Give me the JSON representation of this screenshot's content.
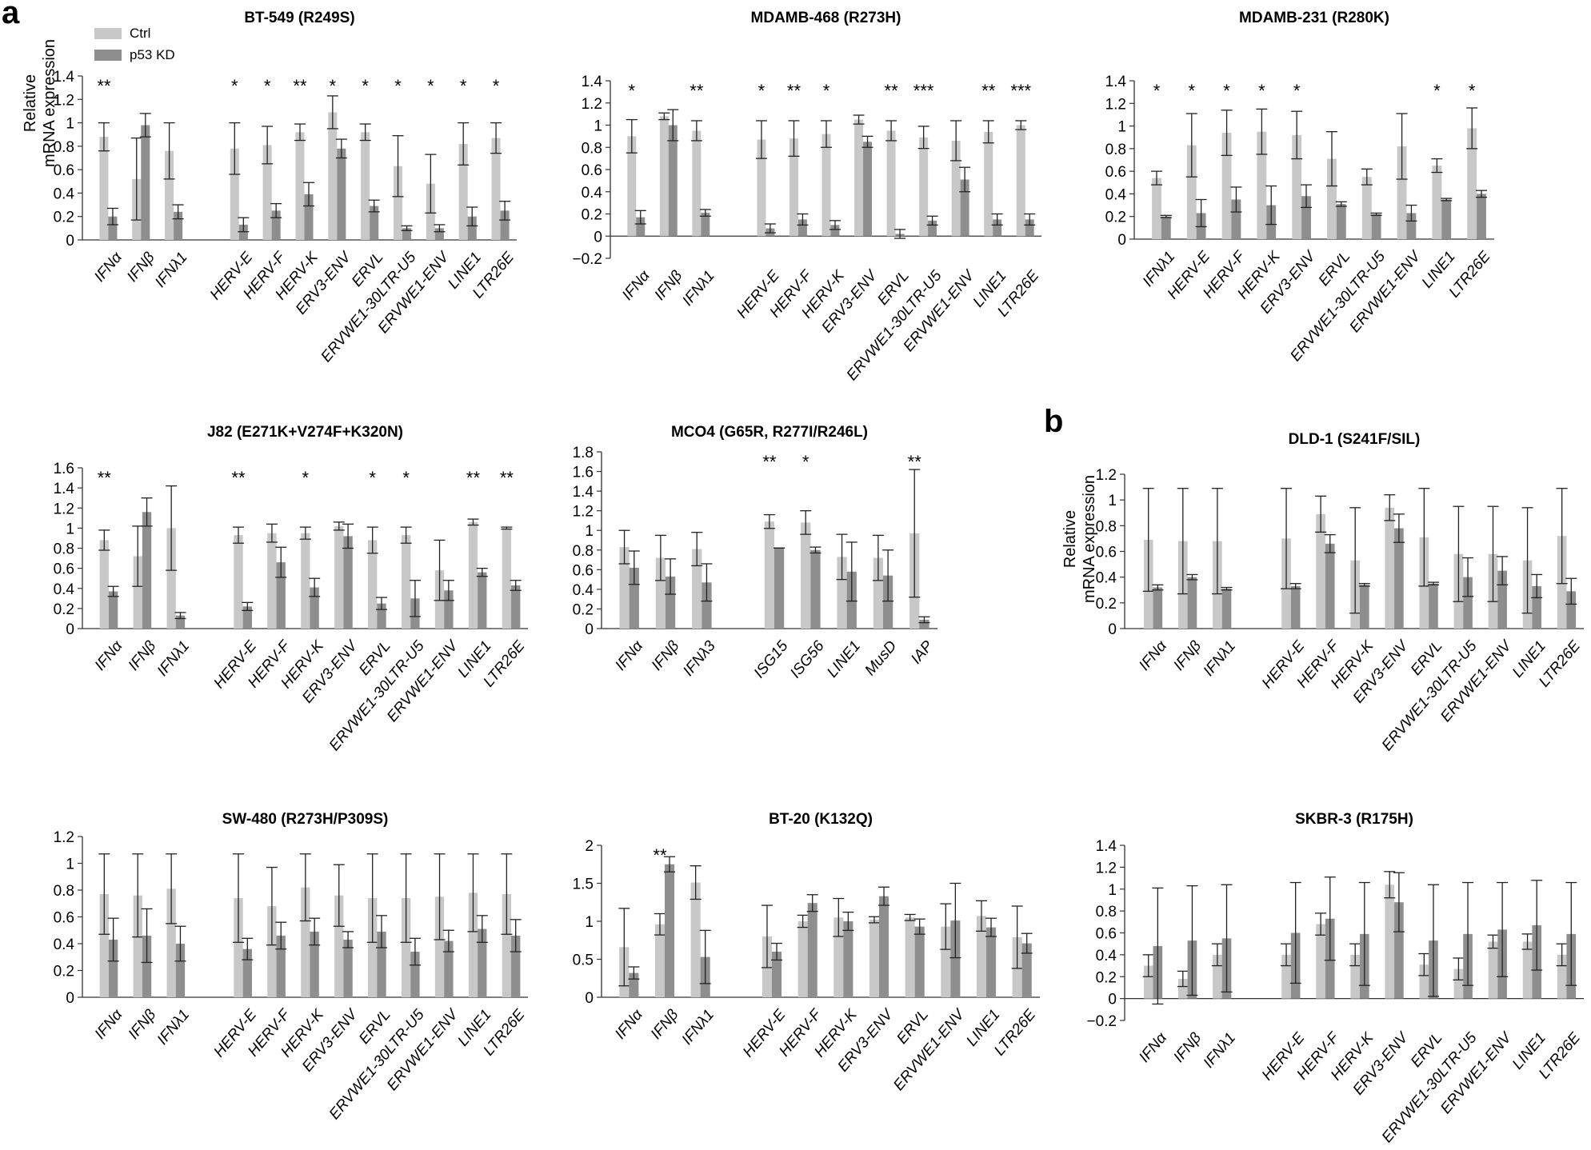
{
  "figure": {
    "panel_a_label": "a",
    "panel_b_label": "b",
    "ylabel_line1": "Relative",
    "ylabel_line2": "mRNA expression",
    "legend": [
      {
        "label": "Ctrl",
        "color": "#c8c8c8"
      },
      {
        "label": "p53 KD",
        "color": "#8e8e8e"
      }
    ],
    "ctrl_color": "#c8c8c8",
    "kd_color": "#8e8e8e"
  },
  "chart_data": [
    {
      "type": "bar",
      "title": "BT-549 (R249S)",
      "ylim": [
        0,
        1.4
      ],
      "ystep": 0.2,
      "yticks": [
        "0",
        "0.2",
        "0.4",
        "0.6",
        "0.8",
        "1",
        "1.2",
        "1.4"
      ],
      "categories": [
        "IFNα",
        "IFNβ",
        "IFNλ1",
        "HERV-E",
        "HERV-F",
        "HERV-K",
        "ERV3-ENV",
        "ERVL",
        "ERVWE1-30LTR-U5",
        "ERVWE1-ENV",
        "LINE1",
        "LTR26E"
      ],
      "gap_after": 2,
      "series": [
        {
          "name": "Ctrl",
          "values": [
            0.88,
            0.52,
            0.76,
            0.78,
            0.81,
            0.92,
            1.09,
            0.92,
            0.63,
            0.48,
            0.82,
            0.87
          ],
          "errors": [
            0.12,
            0.35,
            0.24,
            0.22,
            0.16,
            0.07,
            0.14,
            0.07,
            0.26,
            0.25,
            0.18,
            0.13
          ]
        },
        {
          "name": "p53 KD",
          "values": [
            0.2,
            0.98,
            0.24,
            0.13,
            0.25,
            0.39,
            0.78,
            0.29,
            0.1,
            0.1,
            0.2,
            0.25
          ],
          "errors": [
            0.07,
            0.1,
            0.06,
            0.06,
            0.06,
            0.1,
            0.08,
            0.05,
            0.02,
            0.03,
            0.08,
            0.08
          ]
        }
      ],
      "sig": [
        "**",
        "",
        "",
        "*",
        "*",
        "**",
        "*",
        "*",
        "*",
        "*",
        "*",
        "*"
      ]
    },
    {
      "type": "bar",
      "title": "MDAMB-468 (R273H)",
      "ylim": [
        -0.2,
        1.4
      ],
      "ystep": 0.2,
      "yticks": [
        "−0.2",
        "0",
        "0.2",
        "0.4",
        "0.6",
        "0.8",
        "1",
        "1.2",
        "1.4"
      ],
      "categories": [
        "IFNα",
        "IFNβ",
        "IFNλ1",
        "HERV-E",
        "HERV-F",
        "HERV-K",
        "ERV3-ENV",
        "ERVL",
        "ERVWE1-30LTR-U5",
        "ERVWE1-ENV",
        "LINE1",
        "LTR26E"
      ],
      "gap_after": 2,
      "series": [
        {
          "name": "Ctrl",
          "values": [
            0.9,
            1.08,
            0.95,
            0.87,
            0.88,
            0.92,
            1.05,
            0.95,
            0.89,
            0.86,
            0.94,
            1.0
          ],
          "errors": [
            0.15,
            0.03,
            0.09,
            0.17,
            0.16,
            0.12,
            0.04,
            0.09,
            0.1,
            0.18,
            0.1,
            0.04
          ]
        },
        {
          "name": "p53 KD",
          "values": [
            0.17,
            1.0,
            0.21,
            0.07,
            0.15,
            0.1,
            0.85,
            0.02,
            0.14,
            0.51,
            0.15,
            0.15
          ],
          "errors": [
            0.06,
            0.14,
            0.03,
            0.04,
            0.05,
            0.04,
            0.05,
            0.04,
            0.04,
            0.11,
            0.05,
            0.05
          ]
        }
      ],
      "sig": [
        "*",
        "",
        "**",
        "*",
        "**",
        "*",
        "",
        "**",
        "***",
        "",
        "**",
        "***"
      ]
    },
    {
      "type": "bar",
      "title": "MDAMB-231 (R280K)",
      "ylim": [
        0,
        1.4
      ],
      "ystep": 0.2,
      "yticks": [
        "0",
        "0.2",
        "0.4",
        "0.6",
        "0.8",
        "1",
        "1.2",
        "1.4"
      ],
      "categories": [
        "IFNλ1",
        "HERV-E",
        "HERV-F",
        "HERV-K",
        "ERV3-ENV",
        "ERVL",
        "ERVWE1-30LTR-U5",
        "ERVWE1-ENV",
        "LINE1",
        "LTR26E"
      ],
      "gap_after": 0,
      "series": [
        {
          "name": "Ctrl",
          "values": [
            0.54,
            0.83,
            0.94,
            0.95,
            0.92,
            0.71,
            0.55,
            0.82,
            0.65,
            0.98
          ],
          "errors": [
            0.06,
            0.28,
            0.2,
            0.2,
            0.21,
            0.24,
            0.07,
            0.29,
            0.06,
            0.18
          ]
        },
        {
          "name": "p53 KD",
          "values": [
            0.2,
            0.23,
            0.35,
            0.3,
            0.38,
            0.31,
            0.22,
            0.23,
            0.35,
            0.4
          ],
          "errors": [
            0.01,
            0.12,
            0.11,
            0.17,
            0.1,
            0.02,
            0.01,
            0.07,
            0.01,
            0.03
          ]
        }
      ],
      "sig": [
        "*",
        "*",
        "*",
        "*",
        "*",
        "",
        "",
        "",
        "*",
        "*"
      ]
    },
    {
      "type": "bar",
      "title": "J82 (E271K+V274F+K320N)",
      "ylim": [
        0,
        1.6
      ],
      "ystep": 0.2,
      "yticks": [
        "0",
        "0.2",
        "0.4",
        "0.6",
        "0.8",
        "1",
        "1.2",
        "1.4",
        "1.6"
      ],
      "categories": [
        "IFNα",
        "IFNβ",
        "IFNλ1",
        "HERV-E",
        "HERV-F",
        "HERV-K",
        "ERV3-ENV",
        "ERVL",
        "ERVWE1-30LTR-U5",
        "ERVWE1-ENV",
        "LINE1",
        "LTR26E"
      ],
      "gap_after": 2,
      "series": [
        {
          "name": "Ctrl",
          "values": [
            0.88,
            0.72,
            1.0,
            0.93,
            0.95,
            0.95,
            1.02,
            0.88,
            0.93,
            0.58,
            1.06,
            1.0
          ],
          "errors": [
            0.1,
            0.3,
            0.42,
            0.08,
            0.09,
            0.06,
            0.04,
            0.13,
            0.08,
            0.3,
            0.03,
            0.01
          ]
        },
        {
          "name": "p53 KD",
          "values": [
            0.37,
            1.16,
            0.13,
            0.22,
            0.66,
            0.41,
            0.92,
            0.25,
            0.3,
            0.38,
            0.56,
            0.43
          ],
          "errors": [
            0.05,
            0.14,
            0.03,
            0.04,
            0.15,
            0.09,
            0.12,
            0.06,
            0.18,
            0.1,
            0.04,
            0.05
          ]
        }
      ],
      "sig": [
        "**",
        "",
        "",
        "**",
        "",
        "*",
        "",
        "*",
        "*",
        "",
        "**",
        "**"
      ]
    },
    {
      "type": "bar",
      "title": "MCO4 (G65R, R277I/R246L)",
      "ylim": [
        0,
        1.8
      ],
      "ystep": 0.2,
      "yticks": [
        "0",
        "0.2",
        "0.4",
        "0.6",
        "0.8",
        "1",
        "1.2",
        "1.4",
        "1.6",
        "1.8"
      ],
      "categories": [
        "IFNα",
        "IFNβ",
        "IFNλ3",
        "ISG15",
        "ISG56",
        "LINE1",
        "MusD",
        "IAP"
      ],
      "gap_after": 2,
      "series": [
        {
          "name": "Ctrl",
          "values": [
            0.83,
            0.72,
            0.81,
            1.09,
            1.08,
            0.73,
            0.72,
            0.97
          ],
          "errors": [
            0.17,
            0.23,
            0.17,
            0.07,
            0.12,
            0.23,
            0.23,
            0.65
          ]
        },
        {
          "name": "p53 KD",
          "values": [
            0.62,
            0.53,
            0.47,
            0.82,
            0.8,
            0.58,
            0.54,
            0.09
          ],
          "errors": [
            0.17,
            0.18,
            0.19,
            0.0,
            0.03,
            0.3,
            0.26,
            0.03
          ]
        }
      ],
      "sig": [
        "",
        "",
        "",
        "**",
        "*",
        "",
        "",
        "**"
      ]
    },
    {
      "type": "bar",
      "title": "DLD-1 (S241F/SIL)",
      "ylim": [
        0,
        1.2
      ],
      "ystep": 0.2,
      "yticks": [
        "0",
        "0.2",
        "0.4",
        "0.6",
        "0.8",
        "1",
        "1.2"
      ],
      "categories": [
        "IFNα",
        "IFNβ",
        "IFNλ1",
        "HERV-E",
        "HERV-F",
        "HERV-K",
        "ERV3-ENV",
        "ERVL",
        "ERVWE1-30LTR-U5",
        "ERVWE1-ENV",
        "LINE1",
        "LTR26E"
      ],
      "gap_after": 2,
      "series": [
        {
          "name": "Ctrl",
          "values": [
            0.69,
            0.68,
            0.68,
            0.7,
            0.89,
            0.53,
            0.94,
            0.71,
            0.58,
            0.58,
            0.53,
            0.72
          ],
          "errors": [
            0.4,
            0.41,
            0.41,
            0.39,
            0.14,
            0.41,
            0.1,
            0.38,
            0.37,
            0.37,
            0.41,
            0.37
          ]
        },
        {
          "name": "p53 KD",
          "values": [
            0.32,
            0.4,
            0.31,
            0.33,
            0.66,
            0.34,
            0.78,
            0.35,
            0.4,
            0.45,
            0.33,
            0.29
          ],
          "errors": [
            0.02,
            0.02,
            0.01,
            0.02,
            0.07,
            0.01,
            0.11,
            0.01,
            0.15,
            0.11,
            0.09,
            0.1
          ]
        }
      ],
      "sig": [
        "",
        "",
        "",
        "",
        "",
        "",
        "",
        "",
        "",
        "",
        "",
        ""
      ]
    },
    {
      "type": "bar",
      "title": "SW-480 (R273H/P309S)",
      "ylim": [
        0,
        1.2
      ],
      "ystep": 0.2,
      "yticks": [
        "0",
        "0.2",
        "0.4",
        "0.6",
        "0.8",
        "1",
        "1.2"
      ],
      "categories": [
        "IFNα",
        "IFNβ",
        "IFNλ1",
        "HERV-E",
        "HERV-F",
        "HERV-K",
        "ERV3-ENV",
        "ERVL",
        "ERVWE1-30LTR-U5",
        "ERVWE1-ENV",
        "LINE1",
        "LTR26E"
      ],
      "gap_after": 2,
      "series": [
        {
          "name": "Ctrl",
          "values": [
            0.77,
            0.76,
            0.81,
            0.74,
            0.68,
            0.82,
            0.76,
            0.74,
            0.74,
            0.75,
            0.78,
            0.77
          ],
          "errors": [
            0.3,
            0.31,
            0.26,
            0.33,
            0.29,
            0.25,
            0.23,
            0.33,
            0.33,
            0.32,
            0.29,
            0.3
          ]
        },
        {
          "name": "p53 KD",
          "values": [
            0.43,
            0.46,
            0.4,
            0.36,
            0.46,
            0.49,
            0.43,
            0.49,
            0.34,
            0.42,
            0.51,
            0.46
          ],
          "errors": [
            0.16,
            0.2,
            0.13,
            0.08,
            0.1,
            0.1,
            0.06,
            0.12,
            0.1,
            0.08,
            0.1,
            0.12
          ]
        }
      ],
      "sig": [
        "",
        "",
        "",
        "",
        "",
        "",
        "",
        "",
        "",
        "",
        "",
        ""
      ]
    },
    {
      "type": "bar",
      "title": "BT-20 (K132Q)",
      "ylim": [
        0,
        2
      ],
      "ystep": 0.5,
      "yticks": [
        "0",
        "0.5",
        "1",
        "1.5",
        "2"
      ],
      "categories": [
        "IFNα",
        "IFNβ",
        "IFNλ1",
        "HERV-E",
        "HERV-F",
        "HERV-K",
        "ERV3-ENV",
        "ERVL",
        "ERVWE1-ENV",
        "LINE1",
        "LTR26E"
      ],
      "gap_after": 2,
      "series": [
        {
          "name": "Ctrl",
          "values": [
            0.66,
            0.96,
            1.51,
            0.8,
            1.0,
            1.05,
            1.02,
            1.05,
            0.93,
            1.07,
            0.79
          ],
          "errors": [
            0.51,
            0.14,
            0.22,
            0.41,
            0.08,
            0.25,
            0.04,
            0.04,
            0.3,
            0.2,
            0.41
          ]
        },
        {
          "name": "p53 KD",
          "values": [
            0.32,
            1.75,
            0.53,
            0.6,
            1.24,
            1.0,
            1.33,
            0.93,
            1.01,
            0.92,
            0.71
          ],
          "errors": [
            0.08,
            0.1,
            0.35,
            0.11,
            0.11,
            0.12,
            0.12,
            0.1,
            0.49,
            0.12,
            0.13
          ]
        }
      ],
      "sig": [
        "",
        "**",
        "",
        "",
        "",
        "",
        "",
        "",
        "",
        "",
        ""
      ]
    },
    {
      "type": "bar",
      "title": "SKBR-3 (R175H)",
      "ylim": [
        -0.2,
        1.4
      ],
      "ystep": 0.2,
      "yticks": [
        "−0.2",
        "0",
        "0.2",
        "0.4",
        "0.6",
        "0.8",
        "1",
        "1.2",
        "1.4"
      ],
      "categories": [
        "IFNα",
        "IFNβ",
        "IFNλ1",
        "HERV-E",
        "HERV-F",
        "HERV-K",
        "ERV3-ENV",
        "ERVL",
        "ERVWE1-30LTR-U5",
        "ERVWE1-ENV",
        "LINE1",
        "LTR26E"
      ],
      "gap_after": 2,
      "series": [
        {
          "name": "Ctrl",
          "values": [
            0.3,
            0.18,
            0.4,
            0.4,
            0.68,
            0.4,
            1.04,
            0.31,
            0.27,
            0.52,
            0.52,
            0.4
          ],
          "errors": [
            0.1,
            0.07,
            0.1,
            0.1,
            0.1,
            0.1,
            0.12,
            0.1,
            0.1,
            0.06,
            0.07,
            0.1
          ]
        },
        {
          "name": "p53 KD",
          "values": [
            0.48,
            0.53,
            0.55,
            0.6,
            0.73,
            0.59,
            0.88,
            0.53,
            0.59,
            0.63,
            0.67,
            0.59
          ],
          "errors": [
            0.53,
            0.5,
            0.49,
            0.46,
            0.38,
            0.47,
            0.27,
            0.51,
            0.47,
            0.43,
            0.41,
            0.47
          ]
        }
      ],
      "sig": [
        "",
        "",
        "",
        "",
        "",
        "",
        "",
        "",
        "",
        "",
        "",
        ""
      ]
    }
  ]
}
